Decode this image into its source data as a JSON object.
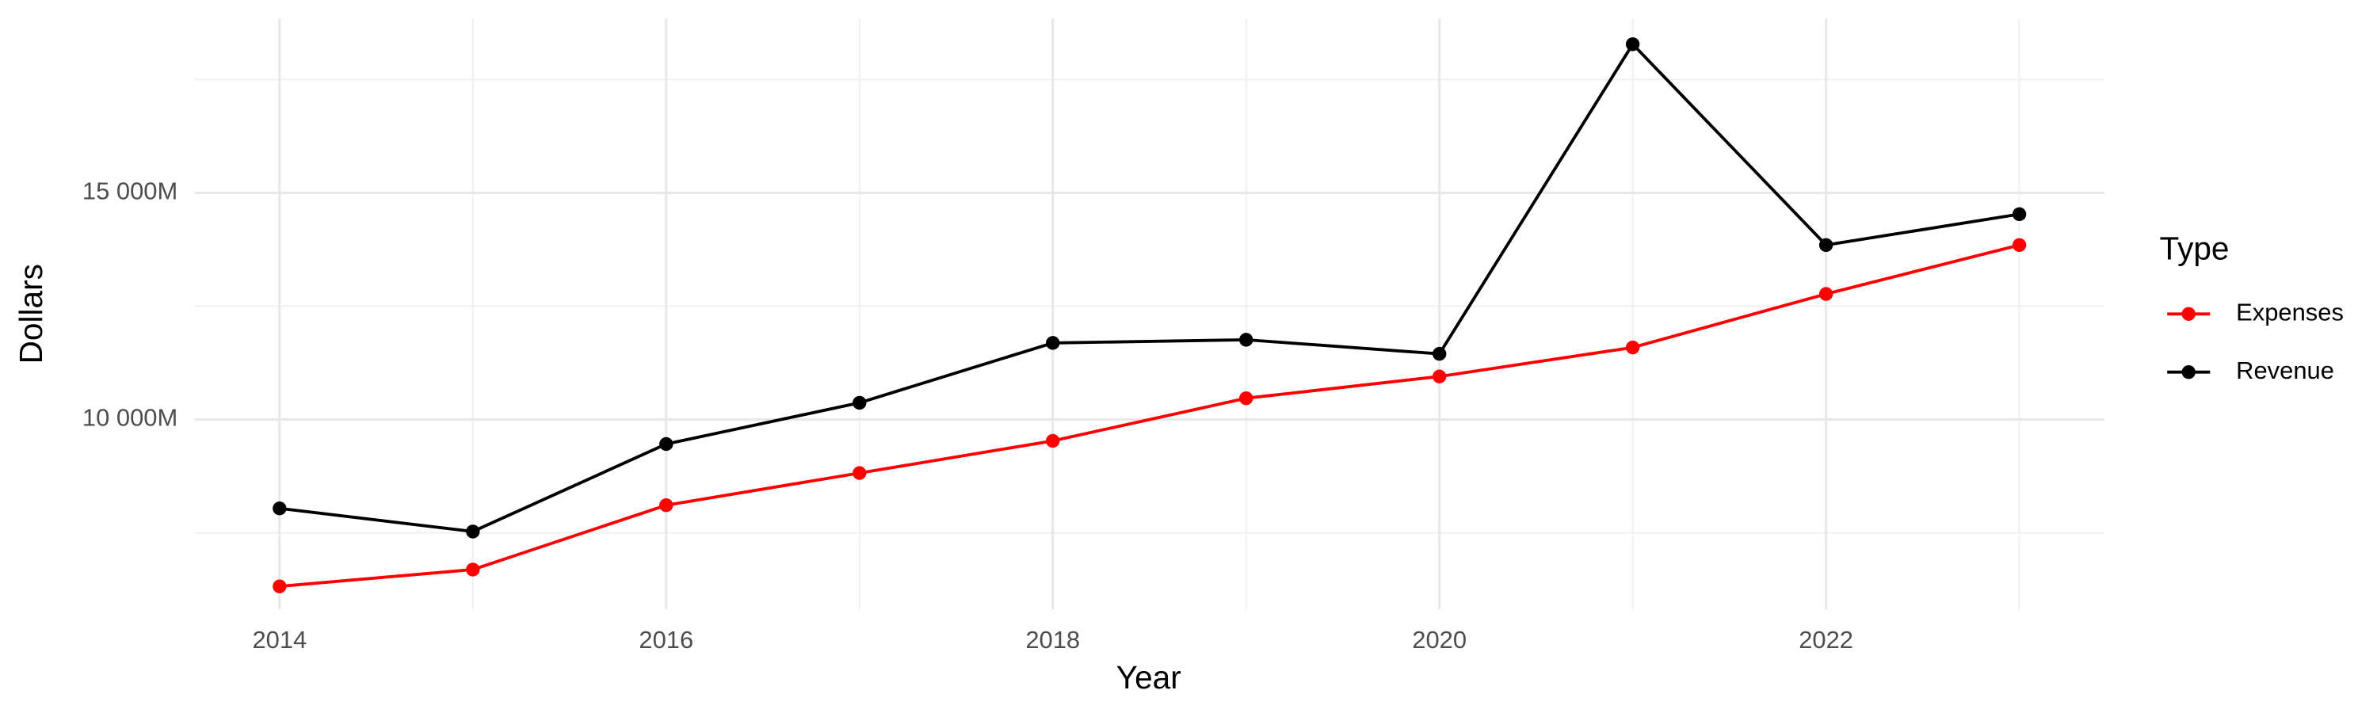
{
  "chart_data": {
    "type": "line",
    "x_label": "Year",
    "y_label": "Dollars",
    "legend_title": "Type",
    "x": [
      2014,
      2015,
      2016,
      2017,
      2018,
      2019,
      2020,
      2021,
      2022,
      2023
    ],
    "series": [
      {
        "name": "Expenses",
        "color": "#ff0000",
        "values": [
          6320,
          6690,
          8110,
          8820,
          9530,
          10470,
          10950,
          11590,
          12770,
          13850
        ]
      },
      {
        "name": "Revenue",
        "color": "#000000",
        "values": [
          8040,
          7530,
          9460,
          10370,
          11690,
          11760,
          11450,
          18280,
          13850,
          14530
        ]
      }
    ],
    "xlim": [
      2013.56,
      2023.44
    ],
    "xticks": [
      2014,
      2016,
      2018,
      2020,
      2022
    ],
    "ylim": [
      5810,
      18850
    ],
    "yticks": [
      {
        "value": 10000,
        "label": "10 000M"
      },
      {
        "value": 15000,
        "label": "15 000M"
      }
    ],
    "grid": true,
    "legend": "right"
  }
}
